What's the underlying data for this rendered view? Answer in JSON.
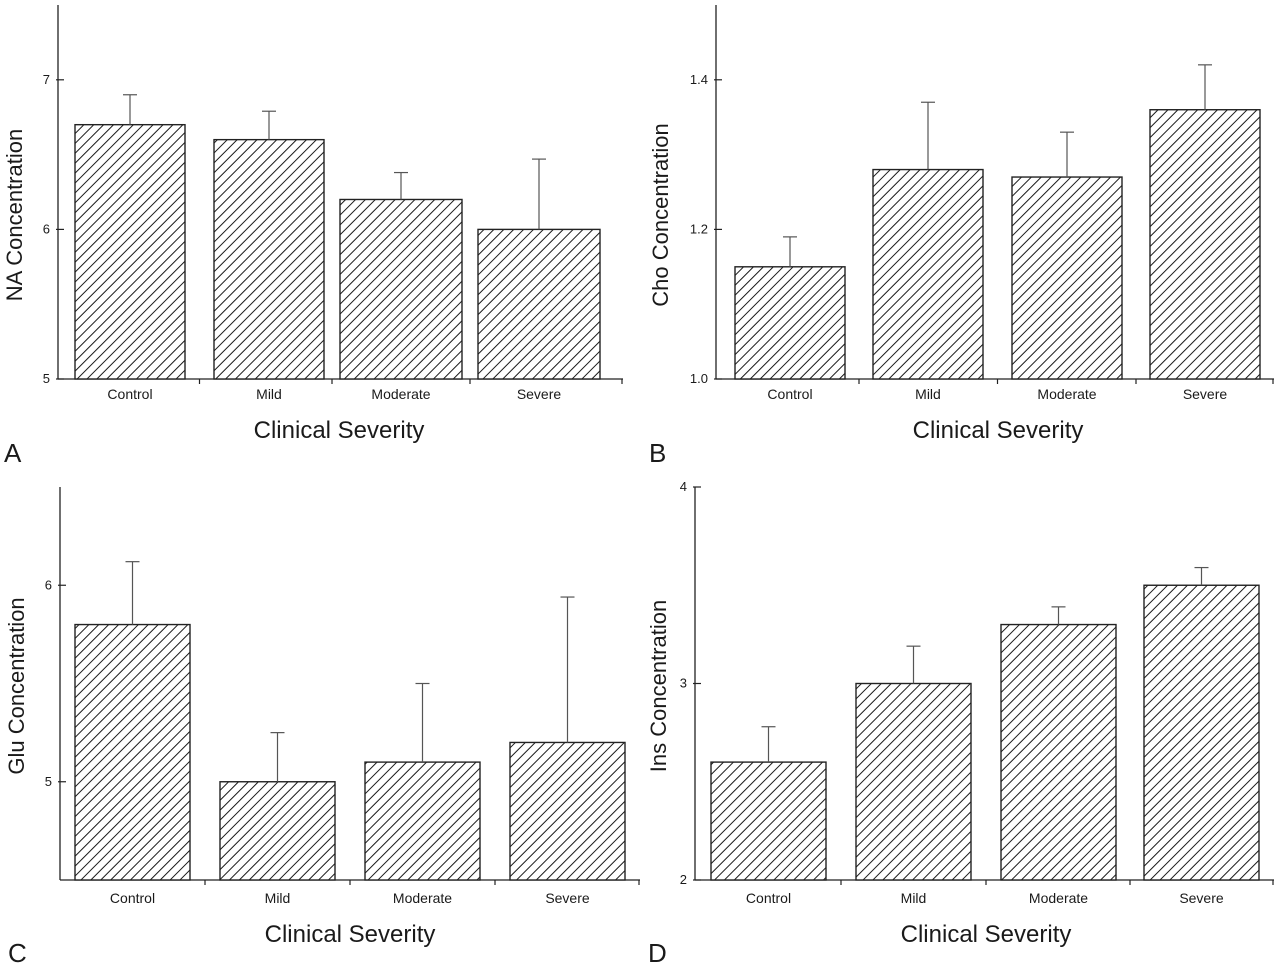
{
  "chart_data": [
    {
      "panel": "A",
      "type": "bar",
      "categories": [
        "Control",
        "Mild",
        "Moderate",
        "Severe"
      ],
      "values": [
        6.7,
        6.6,
        6.2,
        6.0
      ],
      "error_upper": [
        6.9,
        6.79,
        6.38,
        6.47
      ],
      "xlabel": "Clinical Severity",
      "ylabel": "NA Concentration",
      "ylim": [
        5,
        7.5
      ],
      "yticks": [
        5,
        6,
        7
      ],
      "ytick_labels": [
        "5",
        "6",
        "7"
      ],
      "bar_pattern": "diagonal-hatch",
      "grid": false
    },
    {
      "panel": "B",
      "type": "bar",
      "categories": [
        "Control",
        "Mild",
        "Moderate",
        "Severe"
      ],
      "values": [
        1.15,
        1.28,
        1.27,
        1.36
      ],
      "error_upper": [
        1.19,
        1.37,
        1.33,
        1.42
      ],
      "xlabel": "Clinical Severity",
      "ylabel": "Cho Concentration",
      "ylim": [
        1.0,
        1.5
      ],
      "yticks": [
        1.0,
        1.2,
        1.4
      ],
      "ytick_labels": [
        "1.0",
        "1.2",
        "1.4"
      ],
      "bar_pattern": "diagonal-hatch",
      "grid": false
    },
    {
      "panel": "C",
      "type": "bar",
      "categories": [
        "Control",
        "Mild",
        "Moderate",
        "Severe"
      ],
      "values": [
        5.8,
        5.0,
        5.1,
        5.2
      ],
      "error_upper": [
        6.12,
        5.25,
        5.5,
        5.94
      ],
      "xlabel": "Clinical Severity",
      "ylabel": "Glu Concentration",
      "ylim": [
        4.5,
        6.5
      ],
      "yticks": [
        5,
        6
      ],
      "ytick_labels": [
        "5",
        "6"
      ],
      "bar_pattern": "diagonal-hatch",
      "grid": false
    },
    {
      "panel": "D",
      "type": "bar",
      "categories": [
        "Control",
        "Mild",
        "Moderate",
        "Severe"
      ],
      "values": [
        2.6,
        3.0,
        3.3,
        3.5
      ],
      "error_upper": [
        2.78,
        3.19,
        3.39,
        3.59
      ],
      "xlabel": "Clinical Severity",
      "ylabel": "Ins Concentration",
      "ylim": [
        2,
        4
      ],
      "yticks": [
        2,
        3,
        4
      ],
      "ytick_labels": [
        "2",
        "3",
        "4"
      ],
      "bar_pattern": "diagonal-hatch",
      "grid": false
    }
  ]
}
